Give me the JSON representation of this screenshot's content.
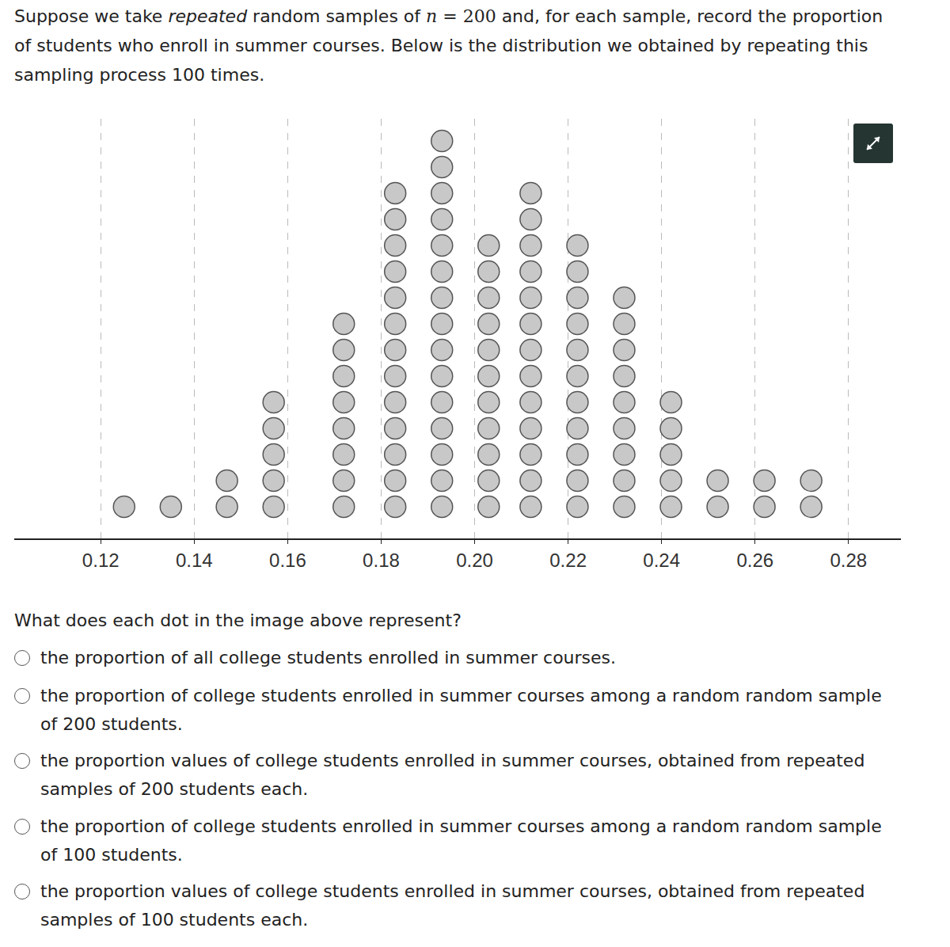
{
  "intro": {
    "before": "Suppose we take ",
    "emphasis": "repeated",
    "middle": " random samples of ",
    "math_var": "n",
    "math_rest": " = 200",
    "after": " and, for each sample, record the proportion of students who enroll in summer courses.  Below is the distribution we obtained by repeating this sampling process 100 times."
  },
  "chart_data": {
    "type": "dot",
    "x": [
      0.125,
      0.135,
      0.147,
      0.157,
      0.172,
      0.183,
      0.193,
      0.203,
      0.212,
      0.222,
      0.232,
      0.242,
      0.252,
      0.262,
      0.272
    ],
    "values": [
      1,
      1,
      2,
      5,
      8,
      13,
      15,
      11,
      13,
      11,
      9,
      5,
      2,
      2,
      2
    ],
    "xlim": [
      0.1015,
      0.2912
    ],
    "xticks": [
      0.12,
      0.14,
      0.16,
      0.18,
      {
        "value": 0.2,
        "label": "0.20"
      },
      0.22,
      0.24,
      0.26,
      0.28
    ],
    "grid": true,
    "color": "#c8c8c8",
    "marker": "circle",
    "tick_labels": "x"
  },
  "question": "What does each dot in the image above represent?",
  "options": [
    "the proportion of all college students enrolled in summer courses.",
    "the proportion of college students enrolled in summer courses among a random random sample of 200 students.",
    "the proportion values of college students enrolled in summer courses, obtained from repeated samples of 200 students each.",
    "the proportion of college students enrolled in summer courses among a random random sample of 100 students.",
    "the proportion values of college students enrolled in summer courses, obtained from repeated samples of 100 students each."
  ]
}
